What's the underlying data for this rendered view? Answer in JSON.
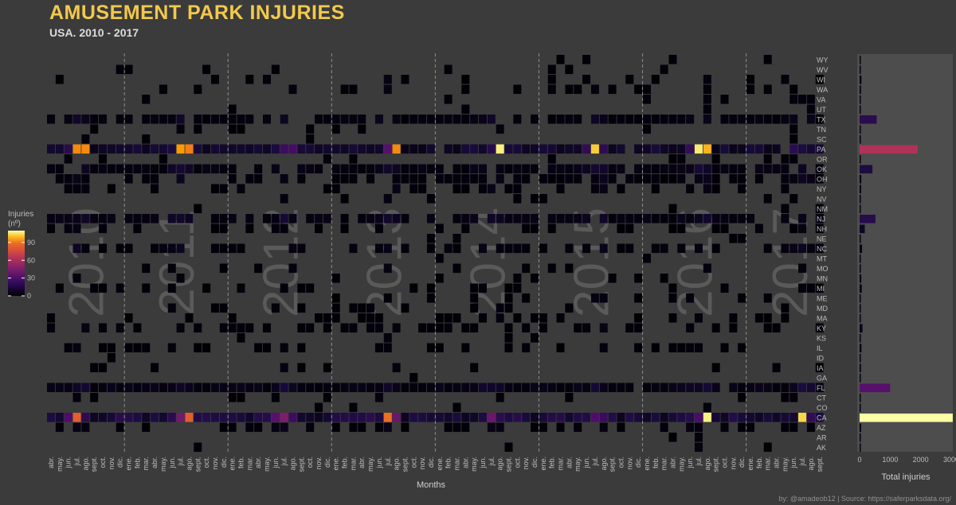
{
  "title": "AMUSEMENT PARK INJURIES",
  "subtitle": "USA. 2010 - 2017",
  "caption": "by: @amadeob12 | Source: https://saferparksdata.org/",
  "chart_data": [
    {
      "type": "heatmap",
      "xlabel": "Months",
      "years": [
        "2010",
        "2011",
        "2012",
        "2013",
        "2014",
        "2015",
        "2016",
        "2017"
      ],
      "months": [
        "abr.",
        "may.",
        "jun.",
        "jul.",
        "ago.",
        "sept.",
        "oct.",
        "nov.",
        "dic.",
        "ene.",
        "feb.",
        "mar.",
        "abr.",
        "may.",
        "jun.",
        "jul.",
        "ago.",
        "sept.",
        "oct.",
        "nov.",
        "dic.",
        "ene.",
        "feb.",
        "mar.",
        "abr.",
        "may.",
        "jun.",
        "jul.",
        "ago.",
        "sept.",
        "oct.",
        "nov.",
        "dic.",
        "ene.",
        "feb.",
        "mar.",
        "abr.",
        "may.",
        "jun.",
        "jul.",
        "ago.",
        "sept.",
        "oct.",
        "nov.",
        "dic.",
        "ene.",
        "feb.",
        "mar.",
        "abr.",
        "may.",
        "jun.",
        "jul.",
        "ago.",
        "sept.",
        "oct.",
        "nov.",
        "dic.",
        "ene.",
        "feb.",
        "mar.",
        "abr.",
        "may.",
        "jun.",
        "jul.",
        "ago.",
        "sept.",
        "oct.",
        "nov.",
        "dic.",
        "ene.",
        "feb.",
        "mar.",
        "abr.",
        "may.",
        "jun.",
        "jul.",
        "ago.",
        "sept.",
        "oct.",
        "nov.",
        "dic.",
        "ene.",
        "feb.",
        "mar.",
        "abr.",
        "may.",
        "jun.",
        "jul.",
        "ago.",
        "sept."
      ],
      "states": [
        "WY",
        "WV",
        "WI",
        "WA",
        "VA",
        "UT",
        "TX",
        "TN",
        "SC",
        "PA",
        "OR",
        "OK",
        "OH",
        "NY",
        "NV",
        "NM",
        "NJ",
        "NH",
        "NE",
        "NC",
        "MT",
        "MO",
        "MN",
        "MI",
        "ME",
        "MD",
        "MA",
        "KY",
        "KS",
        "IL",
        "ID",
        "IA",
        "GA",
        "FL",
        "CT",
        "CO",
        "CA",
        "AZ",
        "AR",
        "AK"
      ],
      "legend": {
        "title": "Injuries\n(nº)",
        "ticks": [
          0,
          30,
          60,
          90
        ],
        "max": 110
      },
      "year_separators": [
        "ene. 2011",
        "ene. 2012",
        "ene. 2013",
        "ene. 2014",
        "ene. 2015",
        "ene. 2016",
        "ene. 2017"
      ]
    },
    {
      "type": "bar",
      "xlabel": "Total injuries",
      "xlim": [
        0,
        3000
      ],
      "xticks": [
        0,
        1000,
        2000,
        3000
      ],
      "categories": [
        "WY",
        "WV",
        "WI",
        "WA",
        "VA",
        "UT",
        "TX",
        "TN",
        "SC",
        "PA",
        "OR",
        "OK",
        "OH",
        "NY",
        "NV",
        "NM",
        "NJ",
        "NH",
        "NE",
        "NC",
        "MT",
        "MO",
        "MN",
        "MI",
        "ME",
        "MD",
        "MA",
        "KY",
        "KS",
        "IL",
        "ID",
        "IA",
        "GA",
        "FL",
        "CT",
        "CO",
        "CA",
        "AZ",
        "AR",
        "AK"
      ],
      "values": [
        5,
        10,
        60,
        45,
        5,
        15,
        560,
        40,
        15,
        1900,
        10,
        420,
        55,
        50,
        8,
        5,
        520,
        170,
        15,
        80,
        5,
        40,
        55,
        70,
        35,
        40,
        40,
        95,
        30,
        60,
        20,
        45,
        10,
        1000,
        30,
        35,
        3050,
        50,
        5,
        20
      ]
    }
  ]
}
